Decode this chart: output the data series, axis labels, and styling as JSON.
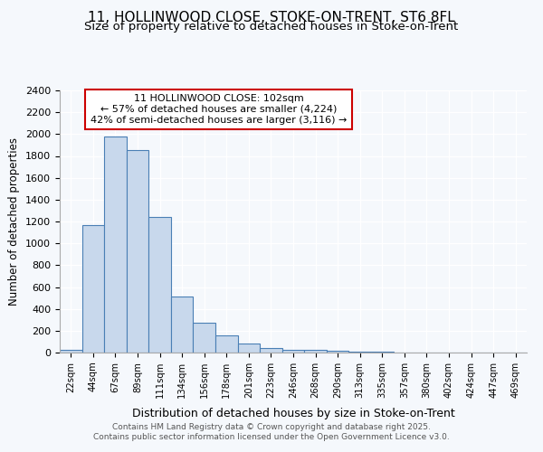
{
  "title_line1": "11, HOLLINWOOD CLOSE, STOKE-ON-TRENT, ST6 8FL",
  "title_line2": "Size of property relative to detached houses in Stoke-on-Trent",
  "xlabel": "Distribution of detached houses by size in Stoke-on-Trent",
  "ylabel": "Number of detached properties",
  "bins": [
    "22sqm",
    "44sqm",
    "67sqm",
    "89sqm",
    "111sqm",
    "134sqm",
    "156sqm",
    "178sqm",
    "201sqm",
    "223sqm",
    "246sqm",
    "268sqm",
    "290sqm",
    "313sqm",
    "335sqm",
    "357sqm",
    "380sqm",
    "402sqm",
    "424sqm",
    "447sqm",
    "469sqm"
  ],
  "values": [
    22,
    1170,
    1980,
    1855,
    1245,
    515,
    275,
    155,
    85,
    45,
    28,
    28,
    15,
    8,
    5,
    4,
    3,
    2,
    2,
    1,
    1
  ],
  "bar_color": "#c8d8ec",
  "bar_edge_color": "#4a7fb5",
  "annotation_text": "11 HOLLINWOOD CLOSE: 102sqm\n← 57% of detached houses are smaller (4,224)\n42% of semi-detached houses are larger (3,116) →",
  "annotation_box_color": "#ffffff",
  "annotation_box_edge_color": "#cc0000",
  "ylim": [
    0,
    2400
  ],
  "yticks": [
    0,
    200,
    400,
    600,
    800,
    1000,
    1200,
    1400,
    1600,
    1800,
    2000,
    2200,
    2400
  ],
  "bg_color": "#f5f8fc",
  "grid_color": "#ffffff",
  "footer_line1": "Contains HM Land Registry data © Crown copyright and database right 2025.",
  "footer_line2": "Contains public sector information licensed under the Open Government Licence v3.0.",
  "title_fontsize": 11,
  "subtitle_fontsize": 9.5
}
